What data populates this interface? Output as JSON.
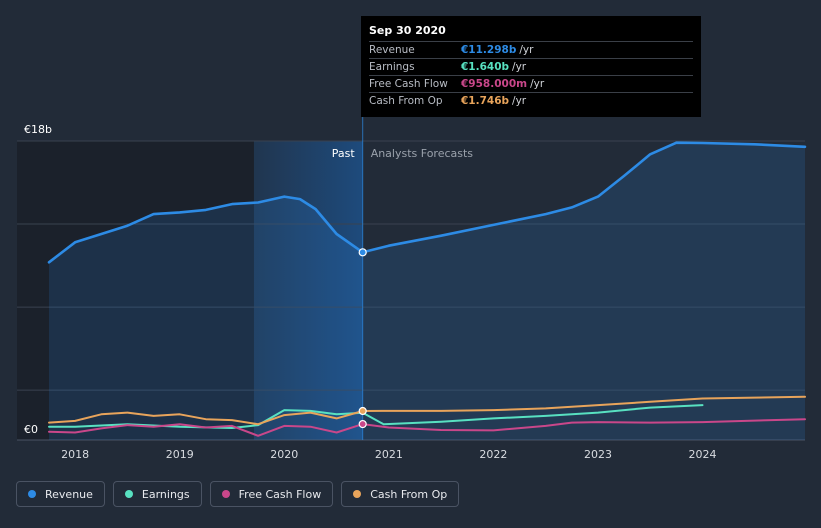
{
  "chart_data": {
    "type": "line",
    "title": "",
    "y_axis": {
      "max_label": "€18b",
      "min_label": "€0",
      "ylim": [
        0,
        18
      ]
    },
    "x_axis": {
      "ticks": [
        "2018",
        "2019",
        "2020",
        "2021",
        "2022",
        "2023",
        "2024"
      ],
      "xlim": [
        2017.75,
        2024.98
      ]
    },
    "regions": {
      "past_label": "Past",
      "forecast_label": "Analysts Forecasts",
      "divider_x": 2020.75,
      "highlight_start_x": 2019.71
    },
    "series": [
      {
        "key": "revenue",
        "name": "Revenue",
        "color": "#2d8be5",
        "filled": true,
        "points": [
          [
            2017.75,
            10.7
          ],
          [
            2018.0,
            11.9
          ],
          [
            2018.25,
            12.4
          ],
          [
            2018.5,
            12.9
          ],
          [
            2018.75,
            13.6
          ],
          [
            2019.0,
            13.7
          ],
          [
            2019.25,
            13.85
          ],
          [
            2019.5,
            14.2
          ],
          [
            2019.75,
            14.3
          ],
          [
            2020.0,
            14.65
          ],
          [
            2020.15,
            14.5
          ],
          [
            2020.3,
            13.9
          ],
          [
            2020.5,
            12.4
          ],
          [
            2020.75,
            11.298
          ],
          [
            2021.0,
            11.7
          ],
          [
            2021.5,
            12.3
          ],
          [
            2022.0,
            12.95
          ],
          [
            2022.5,
            13.6
          ],
          [
            2022.75,
            14.0
          ],
          [
            2023.0,
            14.65
          ],
          [
            2023.25,
            15.9
          ],
          [
            2023.5,
            17.2
          ],
          [
            2023.75,
            17.9
          ],
          [
            2024.0,
            17.88
          ],
          [
            2024.5,
            17.8
          ],
          [
            2024.98,
            17.65
          ]
        ]
      },
      {
        "key": "earnings",
        "name": "Earnings",
        "color": "#58e1c1",
        "filled": false,
        "points": [
          [
            2017.75,
            0.8
          ],
          [
            2018.0,
            0.8
          ],
          [
            2018.5,
            0.95
          ],
          [
            2019.0,
            0.8
          ],
          [
            2019.5,
            0.72
          ],
          [
            2019.75,
            0.9
          ],
          [
            2020.0,
            1.8
          ],
          [
            2020.25,
            1.75
          ],
          [
            2020.5,
            1.55
          ],
          [
            2020.75,
            1.64
          ],
          [
            2020.95,
            0.95
          ],
          [
            2021.5,
            1.1
          ],
          [
            2022.0,
            1.3
          ],
          [
            2022.5,
            1.45
          ],
          [
            2023.0,
            1.65
          ],
          [
            2023.5,
            1.95
          ],
          [
            2024.0,
            2.1
          ]
        ]
      },
      {
        "key": "fcf",
        "name": "Free Cash Flow",
        "color": "#c9478a",
        "filled": false,
        "points": [
          [
            2017.75,
            0.5
          ],
          [
            2018.0,
            0.45
          ],
          [
            2018.25,
            0.7
          ],
          [
            2018.5,
            0.9
          ],
          [
            2018.75,
            0.8
          ],
          [
            2019.0,
            0.95
          ],
          [
            2019.25,
            0.75
          ],
          [
            2019.5,
            0.85
          ],
          [
            2019.75,
            0.25
          ],
          [
            2020.0,
            0.85
          ],
          [
            2020.25,
            0.8
          ],
          [
            2020.5,
            0.45
          ],
          [
            2020.75,
            0.958
          ],
          [
            2021.0,
            0.75
          ],
          [
            2021.5,
            0.6
          ],
          [
            2022.0,
            0.58
          ],
          [
            2022.5,
            0.85
          ],
          [
            2022.75,
            1.05
          ],
          [
            2023.0,
            1.08
          ],
          [
            2023.5,
            1.05
          ],
          [
            2024.0,
            1.08
          ],
          [
            2024.98,
            1.25
          ]
        ]
      },
      {
        "key": "cfo",
        "name": "Cash From Op",
        "color": "#e8a45b",
        "filled": false,
        "points": [
          [
            2017.75,
            1.05
          ],
          [
            2018.0,
            1.15
          ],
          [
            2018.25,
            1.55
          ],
          [
            2018.5,
            1.65
          ],
          [
            2018.75,
            1.45
          ],
          [
            2019.0,
            1.55
          ],
          [
            2019.25,
            1.25
          ],
          [
            2019.5,
            1.2
          ],
          [
            2019.75,
            0.95
          ],
          [
            2020.0,
            1.5
          ],
          [
            2020.25,
            1.65
          ],
          [
            2020.5,
            1.3
          ],
          [
            2020.75,
            1.746
          ],
          [
            2021.0,
            1.75
          ],
          [
            2021.5,
            1.75
          ],
          [
            2022.0,
            1.8
          ],
          [
            2022.5,
            1.9
          ],
          [
            2023.0,
            2.1
          ],
          [
            2023.5,
            2.3
          ],
          [
            2024.0,
            2.5
          ],
          [
            2024.5,
            2.55
          ],
          [
            2024.98,
            2.6
          ]
        ]
      }
    ],
    "markers": [
      {
        "x": 2020.75,
        "y": 11.298,
        "color": "#2d8be5"
      },
      {
        "x": 2020.75,
        "y": 1.746,
        "color": "#e8a45b"
      },
      {
        "x": 2020.75,
        "y": 0.958,
        "color": "#c9478a"
      }
    ]
  },
  "tooltip": {
    "date": "Sep 30 2020",
    "rows": [
      {
        "label": "Revenue",
        "value": "€11.298b",
        "unit": "/yr",
        "color": "#2d8be5"
      },
      {
        "label": "Earnings",
        "value": "€1.640b",
        "unit": "/yr",
        "color": "#58e1c1"
      },
      {
        "label": "Free Cash Flow",
        "value": "€958.000m",
        "unit": "/yr",
        "color": "#c9478a"
      },
      {
        "label": "Cash From Op",
        "value": "€1.746b",
        "unit": "/yr",
        "color": "#e8a45b"
      }
    ]
  },
  "legend": [
    {
      "label": "Revenue",
      "color": "#2d8be5"
    },
    {
      "label": "Earnings",
      "color": "#58e1c1"
    },
    {
      "label": "Free Cash Flow",
      "color": "#c9478a"
    },
    {
      "label": "Cash From Op",
      "color": "#e8a45b"
    }
  ]
}
